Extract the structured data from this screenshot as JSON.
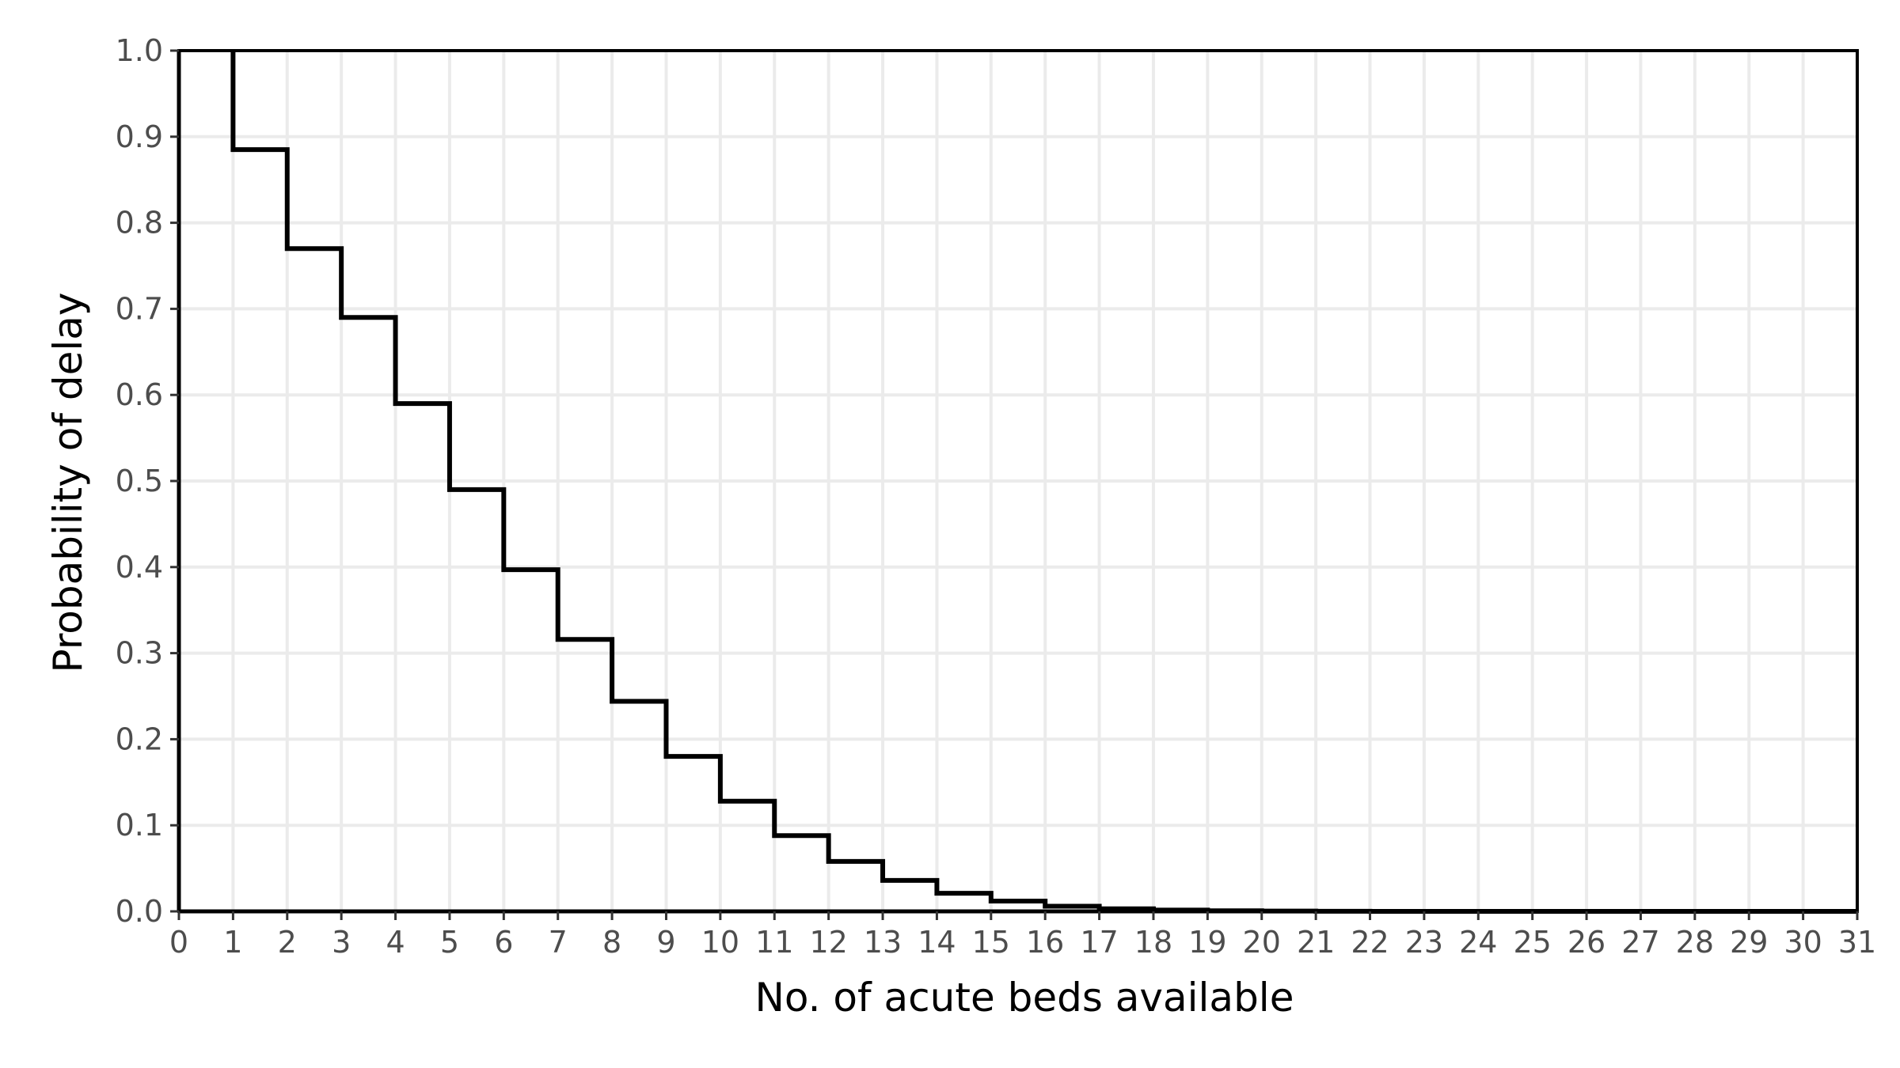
{
  "chart_data": {
    "type": "line",
    "step": true,
    "title": "",
    "xlabel": "No. of acute beds available",
    "ylabel": "Probability of delay",
    "xlim": [
      0,
      31
    ],
    "ylim": [
      0,
      1
    ],
    "x_ticks": [
      0,
      1,
      2,
      3,
      4,
      5,
      6,
      7,
      8,
      9,
      10,
      11,
      12,
      13,
      14,
      15,
      16,
      17,
      18,
      19,
      20,
      21,
      22,
      23,
      24,
      25,
      26,
      27,
      28,
      29,
      30,
      31
    ],
    "y_ticks": [
      0.0,
      0.1,
      0.2,
      0.3,
      0.4,
      0.5,
      0.6,
      0.7,
      0.8,
      0.9,
      1.0
    ],
    "y_tick_labels": [
      "0.0",
      "0.1",
      "0.2",
      "0.3",
      "0.4",
      "0.5",
      "0.6",
      "0.7",
      "0.8",
      "0.9",
      "1.0"
    ],
    "grid": true,
    "series": [
      {
        "x": [
          1,
          2,
          3,
          4,
          5,
          6,
          7,
          8,
          9,
          10,
          11,
          12,
          13,
          14,
          15,
          16,
          17,
          18,
          19,
          20,
          21,
          22,
          23,
          24,
          25,
          26,
          27,
          28,
          29,
          30,
          31
        ],
        "values": [
          0.885,
          0.77,
          0.69,
          0.59,
          0.49,
          0.397,
          0.316,
          0.244,
          0.18,
          0.128,
          0.088,
          0.058,
          0.036,
          0.021,
          0.012,
          0.006,
          0.003,
          0.0015,
          0.0007,
          0.0003,
          0.0001,
          0,
          0,
          0,
          0,
          0,
          0,
          0,
          0,
          0,
          0
        ],
        "color": "#000000"
      }
    ]
  }
}
